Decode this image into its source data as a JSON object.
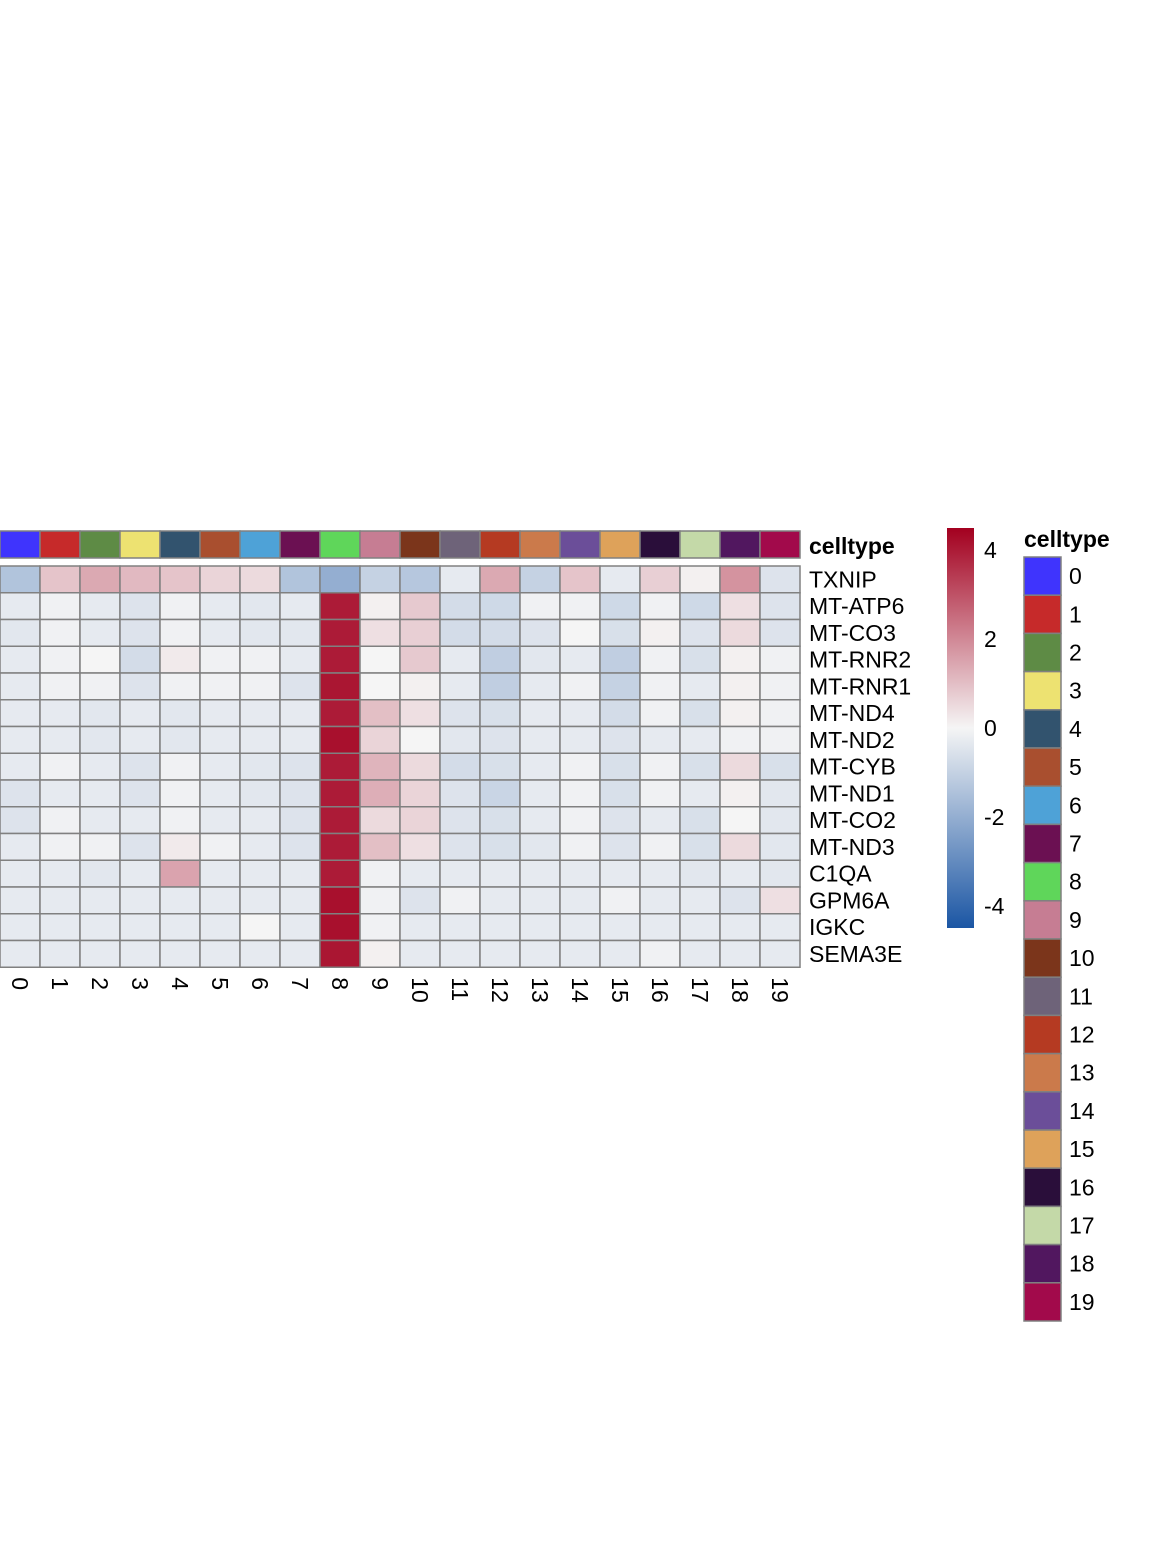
{
  "chart_data": {
    "type": "heatmap",
    "annotation_title": "celltype",
    "legend_title": "celltype",
    "columns": [
      "0",
      "1",
      "2",
      "3",
      "4",
      "5",
      "6",
      "7",
      "8",
      "9",
      "10",
      "11",
      "12",
      "13",
      "14",
      "15",
      "16",
      "17",
      "18",
      "19"
    ],
    "column_colors": [
      "#3f34fd",
      "#c62a2a",
      "#5e8b45",
      "#ede271",
      "#32536e",
      "#a94f2f",
      "#4ea2d7",
      "#6b1052",
      "#5fd65a",
      "#c67d93",
      "#7b351b",
      "#6e6379",
      "#b53a22",
      "#cb7a4b",
      "#6b4e99",
      "#dea25a",
      "#2a0e3a",
      "#c4d9a8",
      "#51175f",
      "#a20a4b"
    ],
    "rows": [
      "TXNIP",
      "MT-ATP6",
      "MT-CO3",
      "MT-RNR2",
      "MT-RNR1",
      "MT-ND4",
      "MT-ND2",
      "MT-CYB",
      "MT-ND1",
      "MT-CO2",
      "MT-ND3",
      "C1QA",
      "GPM6A",
      "IGKC",
      "SEMA3E"
    ],
    "values": [
      [
        -1.4,
        0.9,
        1.4,
        1.1,
        0.9,
        0.6,
        0.5,
        -1.4,
        -2.0,
        -1.0,
        -1.3,
        -0.3,
        1.4,
        -1.0,
        0.9,
        -0.3,
        0.7,
        0.1,
        1.8,
        -0.5
      ],
      [
        -0.3,
        -0.1,
        -0.3,
        -0.5,
        -0.1,
        -0.3,
        -0.4,
        -0.3,
        4.0,
        0.1,
        0.8,
        -0.7,
        -0.8,
        -0.1,
        -0.1,
        -0.8,
        -0.1,
        -0.8,
        0.4,
        -0.5
      ],
      [
        -0.4,
        -0.1,
        -0.3,
        -0.5,
        -0.1,
        -0.3,
        -0.4,
        -0.4,
        4.0,
        0.4,
        0.7,
        -0.7,
        -0.7,
        -0.5,
        0.0,
        -0.6,
        0.1,
        -0.5,
        0.5,
        -0.5
      ],
      [
        -0.3,
        -0.1,
        0.0,
        -0.7,
        0.2,
        -0.1,
        -0.1,
        -0.3,
        4.0,
        0.0,
        0.8,
        -0.3,
        -1.1,
        -0.4,
        -0.3,
        -1.1,
        -0.1,
        -0.6,
        0.1,
        -0.1
      ],
      [
        -0.3,
        -0.1,
        -0.1,
        -0.5,
        -0.1,
        -0.1,
        -0.1,
        -0.5,
        4.1,
        0.0,
        0.1,
        -0.3,
        -1.1,
        -0.3,
        -0.1,
        -1.0,
        -0.1,
        -0.3,
        0.1,
        -0.1
      ],
      [
        -0.3,
        -0.3,
        -0.4,
        -0.3,
        -0.4,
        -0.3,
        -0.3,
        -0.3,
        4.0,
        1.0,
        0.4,
        -0.5,
        -0.6,
        -0.3,
        -0.3,
        -0.7,
        -0.1,
        -0.6,
        0.1,
        -0.1
      ],
      [
        -0.3,
        -0.3,
        -0.4,
        -0.3,
        -0.4,
        -0.3,
        -0.3,
        -0.3,
        4.2,
        0.6,
        0.0,
        -0.4,
        -0.5,
        -0.3,
        -0.3,
        -0.5,
        -0.3,
        -0.3,
        -0.1,
        -0.1
      ],
      [
        -0.3,
        -0.1,
        -0.3,
        -0.5,
        -0.1,
        -0.3,
        -0.4,
        -0.5,
        4.0,
        1.2,
        0.5,
        -0.7,
        -0.6,
        -0.3,
        -0.1,
        -0.6,
        -0.1,
        -0.6,
        0.5,
        -0.6
      ],
      [
        -0.5,
        -0.3,
        -0.3,
        -0.5,
        -0.1,
        -0.3,
        -0.4,
        -0.5,
        4.0,
        1.3,
        0.6,
        -0.5,
        -0.9,
        -0.3,
        -0.1,
        -0.6,
        -0.1,
        -0.3,
        0.1,
        -0.4
      ],
      [
        -0.5,
        -0.1,
        -0.3,
        -0.3,
        -0.1,
        -0.3,
        -0.3,
        -0.5,
        4.0,
        0.5,
        0.6,
        -0.5,
        -0.6,
        -0.3,
        -0.1,
        -0.5,
        -0.3,
        -0.6,
        0.0,
        -0.4
      ],
      [
        -0.3,
        -0.1,
        -0.1,
        -0.5,
        0.2,
        -0.1,
        -0.3,
        -0.5,
        4.0,
        1.0,
        0.4,
        -0.5,
        -0.6,
        -0.4,
        -0.1,
        -0.5,
        -0.1,
        -0.6,
        0.5,
        -0.4
      ],
      [
        -0.3,
        -0.3,
        -0.4,
        -0.3,
        1.5,
        -0.3,
        -0.3,
        -0.3,
        4.0,
        -0.1,
        -0.3,
        -0.3,
        -0.3,
        -0.3,
        -0.3,
        -0.3,
        -0.3,
        -0.4,
        -0.3,
        -0.4
      ],
      [
        -0.3,
        -0.3,
        -0.3,
        -0.3,
        -0.3,
        -0.3,
        -0.3,
        -0.3,
        4.2,
        -0.1,
        -0.5,
        -0.1,
        -0.3,
        -0.3,
        -0.3,
        -0.1,
        -0.3,
        -0.3,
        -0.5,
        0.4
      ],
      [
        -0.3,
        -0.3,
        -0.3,
        -0.3,
        -0.3,
        -0.3,
        0.0,
        -0.3,
        4.2,
        -0.1,
        -0.3,
        -0.3,
        -0.3,
        -0.3,
        -0.3,
        -0.3,
        -0.3,
        -0.3,
        -0.3,
        -0.3
      ],
      [
        -0.3,
        -0.3,
        -0.3,
        -0.3,
        -0.3,
        -0.3,
        -0.3,
        -0.3,
        4.1,
        0.1,
        -0.3,
        -0.3,
        -0.3,
        -0.3,
        -0.3,
        -0.3,
        -0.1,
        -0.3,
        -0.3,
        -0.3
      ]
    ],
    "colorbar": {
      "range": [
        -4.5,
        4.5
      ],
      "ticks": [
        4,
        2,
        0,
        -2,
        -4
      ],
      "tick_labels": [
        "4",
        "2",
        "0",
        "-2",
        "-4"
      ],
      "colors": [
        "#1b56a4",
        "#f5f5f5",
        "#a3001f"
      ]
    },
    "grid_color": "#808080"
  }
}
